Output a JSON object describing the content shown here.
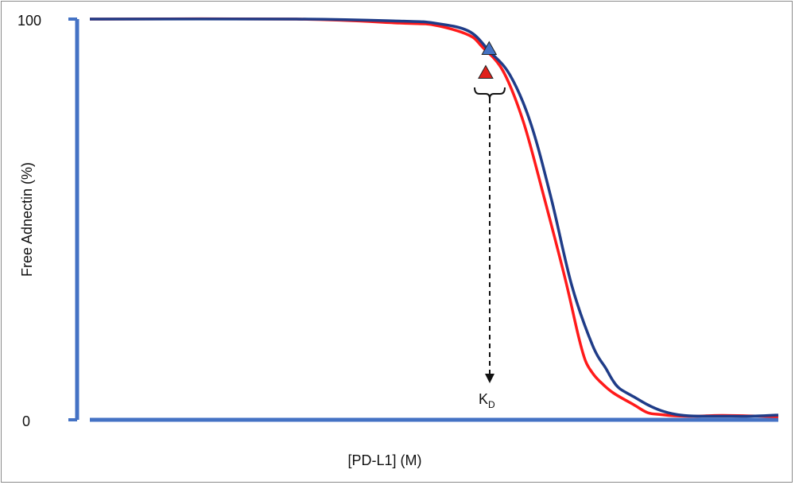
{
  "chart_data": {
    "type": "line",
    "title": "",
    "xlabel": "[PD-L1] (M)",
    "ylabel": "Free Adnectin (%)",
    "ylim": [
      0,
      100
    ],
    "y_ticks": [
      "100",
      "0"
    ],
    "x_ticks": [],
    "grid": false,
    "legend": "none",
    "x_note": "x axis has no printed tick values; curves shown against relative position 0–100",
    "series": [
      {
        "color": "#ff1a1a",
        "x": [
          0,
          30,
          45,
          50,
          55,
          57,
          60,
          63,
          66,
          69,
          71,
          72,
          73,
          74,
          76,
          79,
          81,
          83,
          85,
          88,
          92,
          100
        ],
        "y": [
          100,
          100,
          99,
          98.5,
          96,
          93,
          87,
          74,
          55,
          35,
          20,
          14,
          11,
          9,
          6,
          3,
          1,
          0.5,
          0.2,
          0.1,
          0.3,
          0
        ]
      },
      {
        "color": "#1f3c88",
        "x": [
          0,
          30,
          45,
          50,
          55,
          58,
          61,
          64,
          67,
          70,
          73,
          75,
          76,
          77,
          79,
          81,
          83,
          85,
          87,
          89,
          92,
          96,
          100
        ],
        "y": [
          100,
          100,
          99.5,
          99,
          97,
          92,
          86,
          74,
          55,
          33,
          18,
          12,
          9,
          7,
          5,
          3,
          1.5,
          0.6,
          0.2,
          0.1,
          0.1,
          0.1,
          0.4
        ]
      }
    ],
    "markers": [
      {
        "shape": "triangle",
        "color": "#4472c4",
        "x": 58,
        "y": 92.5
      },
      {
        "shape": "triangle",
        "color": "#e0201a",
        "x": 57.5,
        "y": 86.5
      }
    ],
    "annotations": [
      {
        "text": "K",
        "subscript": "D",
        "x": 58.5
      }
    ],
    "colors": {
      "axis": "#4472c4",
      "red_curve": "#ff1a1a",
      "blue_curve": "#1f3c88"
    }
  }
}
